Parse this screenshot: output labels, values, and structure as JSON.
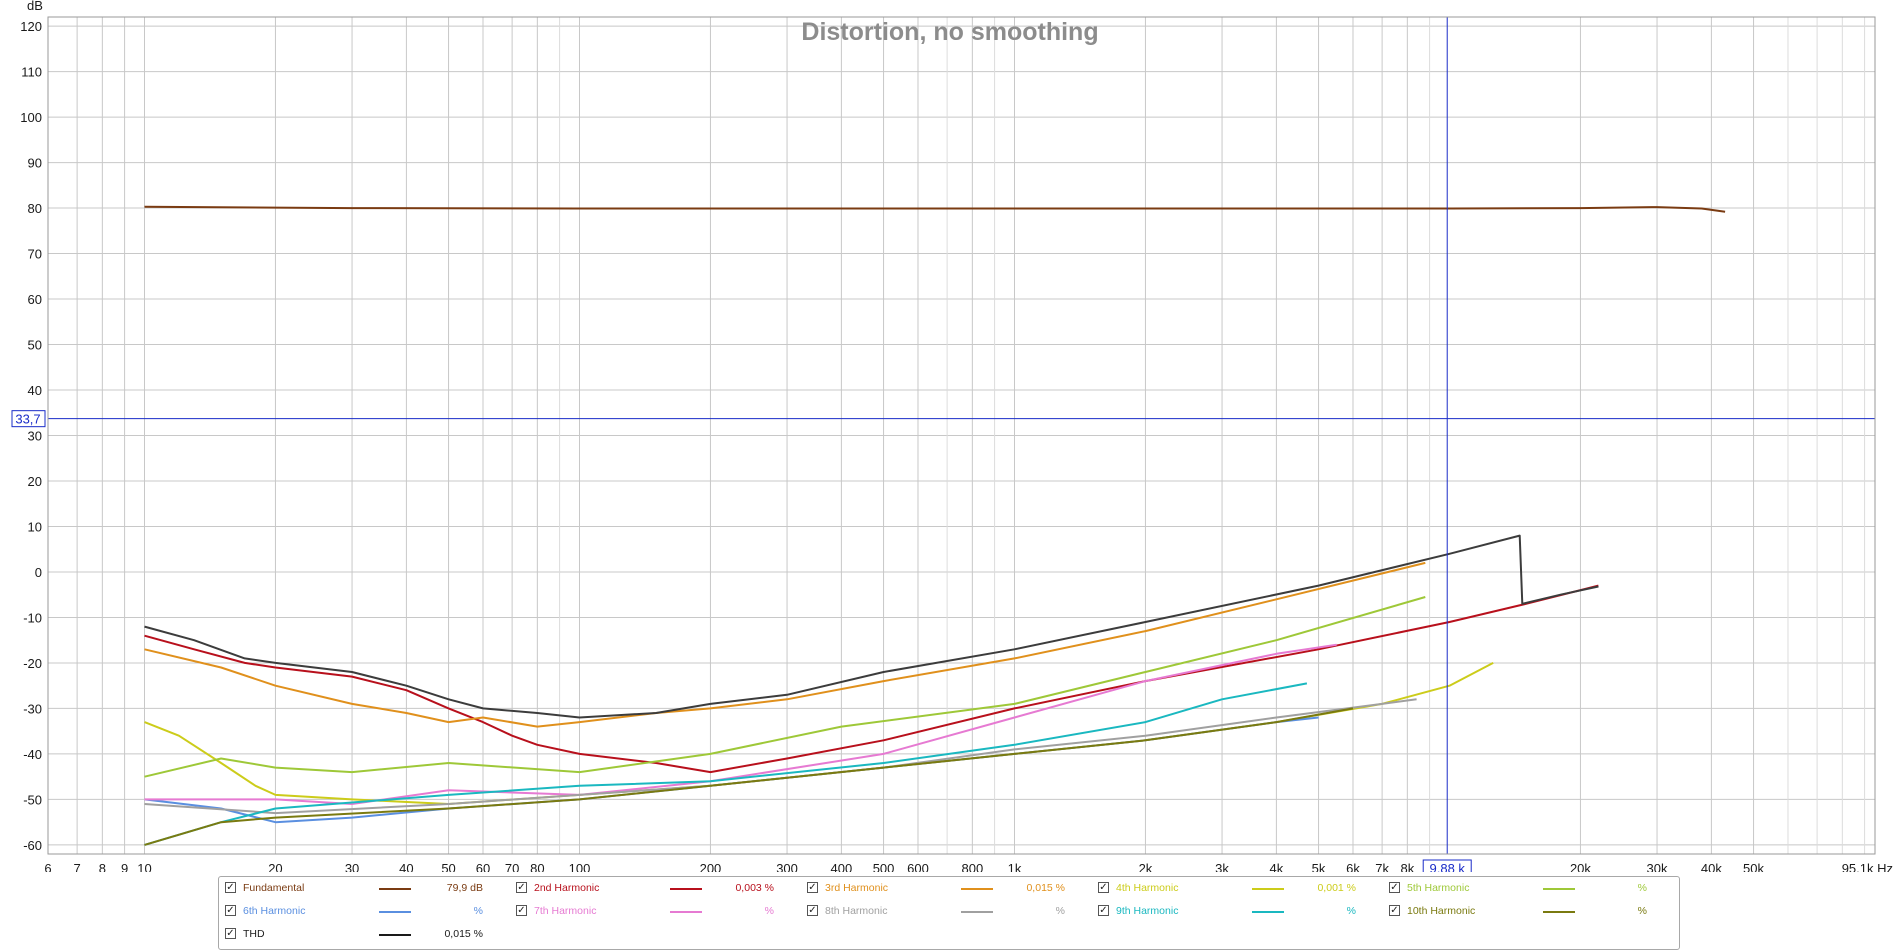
{
  "chart_data": {
    "type": "line",
    "title": "Distortion, no smoothing",
    "ylabel": "dB",
    "xunit": "Hz",
    "x_scale": "log",
    "xlim": [
      6,
      95100
    ],
    "ylim": [
      -62,
      122
    ],
    "grid": true,
    "legend_position": "bottom",
    "y_ticks": [
      "120",
      "110",
      "100",
      "90",
      "80",
      "70",
      "60",
      "50",
      "40",
      "30",
      "20",
      "10",
      "0",
      "-10",
      "-20",
      "-30",
      "-40",
      "-50",
      "-60"
    ],
    "x_tick_values": [
      6,
      7,
      8,
      9,
      10,
      20,
      30,
      40,
      50,
      60,
      70,
      80,
      100,
      200,
      300,
      400,
      500,
      600,
      800,
      1000,
      2000,
      3000,
      4000,
      5000,
      6000,
      7000,
      8000,
      20000,
      30000,
      40000,
      50000,
      95100
    ],
    "x_tick_labels": [
      "6",
      "7",
      "8",
      "9",
      "10",
      "20",
      "30",
      "40",
      "50",
      "60",
      "70",
      "80",
      "100",
      "200",
      "300",
      "400",
      "500",
      "600",
      "800",
      "1k",
      "2k",
      "3k",
      "4k",
      "5k",
      "6k",
      "7k",
      "8k",
      "20k",
      "30k",
      "40k",
      "50k",
      "95,1k Hz"
    ],
    "cursor": {
      "x_label": "9,88 k",
      "x_value": 9880,
      "y_label": "33,7",
      "y_value": 33.7
    },
    "series": [
      {
        "name": "Fundamental",
        "color": "#7a3b12",
        "value": "79,9 dB",
        "points": [
          [
            10,
            80.3
          ],
          [
            30,
            80.0
          ],
          [
            100,
            79.9
          ],
          [
            1000,
            79.9
          ],
          [
            10000,
            79.9
          ],
          [
            20000,
            80.0
          ],
          [
            30000,
            80.2
          ],
          [
            38000,
            79.9
          ],
          [
            43000,
            79.2
          ]
        ]
      },
      {
        "name": "2nd Harmonic",
        "color": "#b8101c",
        "value": "0,003 %",
        "points": [
          [
            10,
            -14
          ],
          [
            13,
            -17
          ],
          [
            17,
            -20
          ],
          [
            20,
            -21
          ],
          [
            30,
            -23
          ],
          [
            40,
            -26
          ],
          [
            50,
            -30
          ],
          [
            60,
            -33
          ],
          [
            70,
            -36
          ],
          [
            80,
            -38
          ],
          [
            100,
            -40
          ],
          [
            150,
            -42
          ],
          [
            200,
            -44
          ],
          [
            300,
            -41
          ],
          [
            500,
            -37
          ],
          [
            1000,
            -30
          ],
          [
            2000,
            -24
          ],
          [
            5000,
            -17
          ],
          [
            10000,
            -11
          ],
          [
            15000,
            -7
          ],
          [
            22000,
            -3
          ]
        ]
      },
      {
        "name": "3rd Harmonic",
        "color": "#e0901c",
        "value": "0,015 %",
        "points": [
          [
            10,
            -17
          ],
          [
            15,
            -21
          ],
          [
            20,
            -25
          ],
          [
            30,
            -29
          ],
          [
            40,
            -31
          ],
          [
            50,
            -33
          ],
          [
            60,
            -32
          ],
          [
            80,
            -34
          ],
          [
            100,
            -33
          ],
          [
            150,
            -31
          ],
          [
            200,
            -30
          ],
          [
            300,
            -28
          ],
          [
            500,
            -24
          ],
          [
            1000,
            -19
          ],
          [
            2000,
            -13
          ],
          [
            4000,
            -6
          ],
          [
            8800,
            2
          ]
        ]
      },
      {
        "name": "4th Harmonic",
        "color": "#cccc1a",
        "value": "0,001 %",
        "points": [
          [
            10,
            -33
          ],
          [
            12,
            -36
          ],
          [
            15,
            -42
          ],
          [
            18,
            -47
          ],
          [
            20,
            -49
          ],
          [
            30,
            -50
          ],
          [
            50,
            -51
          ],
          [
            100,
            -49
          ],
          [
            200,
            -47
          ],
          [
            500,
            -43
          ],
          [
            1000,
            -40
          ],
          [
            2000,
            -37
          ],
          [
            4000,
            -33
          ],
          [
            7000,
            -29
          ],
          [
            10000,
            -25
          ],
          [
            12600,
            -20
          ]
        ]
      },
      {
        "name": "5th Harmonic",
        "color": "#9ec838",
        "value": "",
        "points": [
          [
            10,
            -45
          ],
          [
            15,
            -41
          ],
          [
            20,
            -43
          ],
          [
            30,
            -44
          ],
          [
            50,
            -42
          ],
          [
            100,
            -44
          ],
          [
            200,
            -40
          ],
          [
            400,
            -34
          ],
          [
            1000,
            -29
          ],
          [
            2000,
            -22
          ],
          [
            4000,
            -15
          ],
          [
            8800,
            -5.5
          ]
        ]
      },
      {
        "name": "6th Harmonic",
        "color": "#5a8fe0",
        "value": "",
        "points": [
          [
            10,
            -50
          ],
          [
            15,
            -52
          ],
          [
            20,
            -55
          ],
          [
            30,
            -54
          ],
          [
            50,
            -52
          ],
          [
            100,
            -50
          ],
          [
            200,
            -47
          ],
          [
            500,
            -43
          ],
          [
            1000,
            -40
          ],
          [
            2000,
            -37
          ],
          [
            4000,
            -33
          ],
          [
            5000,
            -32
          ]
        ]
      },
      {
        "name": "7th Harmonic",
        "color": "#e67ad2",
        "value": "",
        "points": [
          [
            10,
            -50
          ],
          [
            20,
            -50
          ],
          [
            30,
            -51
          ],
          [
            50,
            -48
          ],
          [
            100,
            -49
          ],
          [
            200,
            -46
          ],
          [
            500,
            -40
          ],
          [
            1000,
            -32
          ],
          [
            2000,
            -24
          ],
          [
            4000,
            -18
          ],
          [
            5500,
            -16
          ]
        ]
      },
      {
        "name": "8th Harmonic",
        "color": "#a0a0a0",
        "value": "",
        "points": [
          [
            10,
            -51
          ],
          [
            20,
            -53
          ],
          [
            50,
            -51
          ],
          [
            100,
            -49
          ],
          [
            200,
            -47
          ],
          [
            500,
            -43
          ],
          [
            1000,
            -39
          ],
          [
            2000,
            -36
          ],
          [
            4000,
            -32
          ],
          [
            7000,
            -29
          ],
          [
            8400,
            -28
          ]
        ]
      },
      {
        "name": "9th Harmonic",
        "color": "#1ab8c0",
        "value": "",
        "points": [
          [
            10,
            -60
          ],
          [
            15,
            -55
          ],
          [
            20,
            -52
          ],
          [
            50,
            -49
          ],
          [
            100,
            -47
          ],
          [
            200,
            -46
          ],
          [
            500,
            -42
          ],
          [
            1000,
            -38
          ],
          [
            2000,
            -33
          ],
          [
            3000,
            -28
          ],
          [
            4700,
            -24.5
          ]
        ]
      },
      {
        "name": "10th Harmonic",
        "color": "#7a7a10",
        "value": "",
        "points": [
          [
            10,
            -60
          ],
          [
            15,
            -55
          ],
          [
            20,
            -54
          ],
          [
            50,
            -52
          ],
          [
            100,
            -50
          ],
          [
            200,
            -47
          ],
          [
            500,
            -43
          ],
          [
            1000,
            -40
          ],
          [
            2000,
            -37
          ],
          [
            4000,
            -33
          ],
          [
            6000,
            -30
          ]
        ]
      },
      {
        "name": "THD",
        "color": "#3c3c3c",
        "value": "0,015 %",
        "points": [
          [
            10,
            -12
          ],
          [
            13,
            -15
          ],
          [
            17,
            -19
          ],
          [
            20,
            -20
          ],
          [
            30,
            -22
          ],
          [
            40,
            -25
          ],
          [
            50,
            -28
          ],
          [
            60,
            -30
          ],
          [
            80,
            -31
          ],
          [
            100,
            -32
          ],
          [
            150,
            -31
          ],
          [
            200,
            -29
          ],
          [
            300,
            -27
          ],
          [
            500,
            -22
          ],
          [
            1000,
            -17
          ],
          [
            2000,
            -11
          ],
          [
            5000,
            -3
          ],
          [
            10000,
            4
          ],
          [
            14500,
            8
          ],
          [
            14700,
            -7
          ],
          [
            18000,
            -5
          ],
          [
            22000,
            -3.2
          ]
        ]
      }
    ]
  },
  "legend": {
    "items": [
      {
        "name": "Fundamental",
        "value": "79,9 dB",
        "color": "#7a3b12",
        "checked": true
      },
      {
        "name": "2nd Harmonic",
        "value": "0,003 %",
        "color": "#b8101c",
        "checked": true
      },
      {
        "name": "3rd Harmonic",
        "value": "0,015 %",
        "color": "#e0901c",
        "checked": true
      },
      {
        "name": "4th Harmonic",
        "value": "0,001 %",
        "color": "#cccc1a",
        "checked": true
      },
      {
        "name": "5th Harmonic",
        "value": "%",
        "color": "#9ec838",
        "checked": true
      },
      {
        "name": "6th Harmonic",
        "value": "%",
        "color": "#5a8fe0",
        "checked": true
      },
      {
        "name": "7th Harmonic",
        "value": "%",
        "color": "#e67ad2",
        "checked": true
      },
      {
        "name": "8th Harmonic",
        "value": "%",
        "color": "#a0a0a0",
        "checked": true
      },
      {
        "name": "9th Harmonic",
        "value": "%",
        "color": "#1ab8c0",
        "checked": true
      },
      {
        "name": "10th Harmonic",
        "value": "%",
        "color": "#7a7a10",
        "checked": true
      },
      {
        "name": "THD",
        "value": "0,015 %",
        "color": "#1a1a1a",
        "checked": true
      }
    ]
  },
  "checkmark": "✓"
}
